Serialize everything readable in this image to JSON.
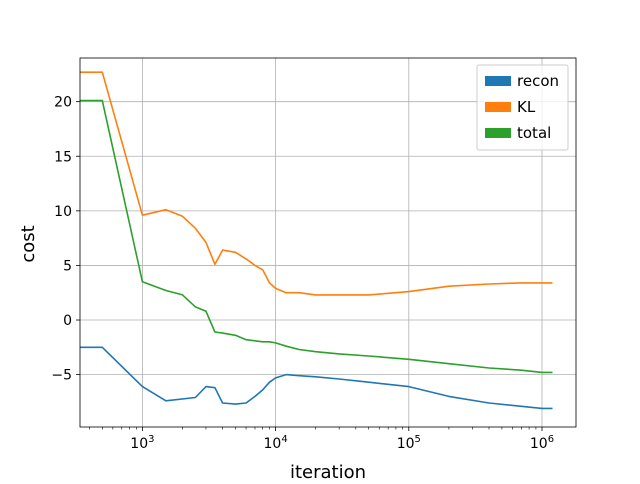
{
  "chart_data": {
    "type": "line",
    "xlabel": "iteration",
    "ylabel": "cost",
    "xscale": "log",
    "xlim": [
      340,
      1800000
    ],
    "ylim": [
      -9.8,
      24.0
    ],
    "grid": true,
    "legend_position": "top-right",
    "xticks": [
      {
        "value": 1000,
        "base": "10",
        "exp": "3"
      },
      {
        "value": 10000,
        "base": "10",
        "exp": "4"
      },
      {
        "value": 100000,
        "base": "10",
        "exp": "5"
      },
      {
        "value": 1000000,
        "base": "10",
        "exp": "6"
      }
    ],
    "yticks": [
      {
        "value": -5,
        "label": "−5"
      },
      {
        "value": 0,
        "label": "0"
      },
      {
        "value": 5,
        "label": "5"
      },
      {
        "value": 10,
        "label": "10"
      },
      {
        "value": 15,
        "label": "15"
      },
      {
        "value": 20,
        "label": "20"
      }
    ],
    "series": [
      {
        "name": "recon",
        "color": "#1f77b4",
        "x": [
          340,
          500,
          1000,
          1500,
          2500,
          3000,
          3500,
          4000,
          5000,
          6000,
          7000,
          8000,
          9000,
          10000,
          12000,
          15000,
          20000,
          30000,
          50000,
          100000,
          200000,
          400000,
          700000,
          1000000,
          1200000
        ],
        "y": [
          -2.5,
          -2.5,
          -6.1,
          -7.4,
          -7.1,
          -6.1,
          -6.2,
          -7.6,
          -7.7,
          -7.6,
          -7.0,
          -6.4,
          -5.7,
          -5.3,
          -5.0,
          -5.1,
          -5.2,
          -5.4,
          -5.7,
          -6.1,
          -7.0,
          -7.6,
          -7.9,
          -8.1,
          -8.1
        ]
      },
      {
        "name": "KL",
        "color": "#ff7f0e",
        "x": [
          340,
          500,
          1000,
          1500,
          2000,
          2500,
          3000,
          3500,
          4000,
          5000,
          6000,
          7000,
          8000,
          9000,
          10000,
          12000,
          15000,
          20000,
          30000,
          50000,
          100000,
          150000,
          200000,
          400000,
          700000,
          1000000,
          1200000
        ],
        "y": [
          22.7,
          22.7,
          9.6,
          10.1,
          9.5,
          8.4,
          7.1,
          5.1,
          6.4,
          6.2,
          5.6,
          5.0,
          4.6,
          3.4,
          2.9,
          2.5,
          2.5,
          2.3,
          2.3,
          2.3,
          2.6,
          2.9,
          3.1,
          3.3,
          3.4,
          3.4,
          3.4
        ]
      },
      {
        "name": "total",
        "color": "#2ca02c",
        "x": [
          340,
          500,
          1000,
          1500,
          2000,
          2500,
          3000,
          3500,
          4000,
          5000,
          6000,
          7000,
          8000,
          9000,
          10000,
          12000,
          15000,
          20000,
          30000,
          50000,
          100000,
          200000,
          400000,
          700000,
          1000000,
          1200000
        ],
        "y": [
          20.1,
          20.1,
          3.5,
          2.7,
          2.3,
          1.2,
          0.8,
          -1.1,
          -1.2,
          -1.4,
          -1.8,
          -1.9,
          -2.0,
          -2.0,
          -2.1,
          -2.4,
          -2.7,
          -2.9,
          -3.1,
          -3.3,
          -3.6,
          -4.0,
          -4.4,
          -4.6,
          -4.8,
          -4.8
        ]
      }
    ]
  }
}
